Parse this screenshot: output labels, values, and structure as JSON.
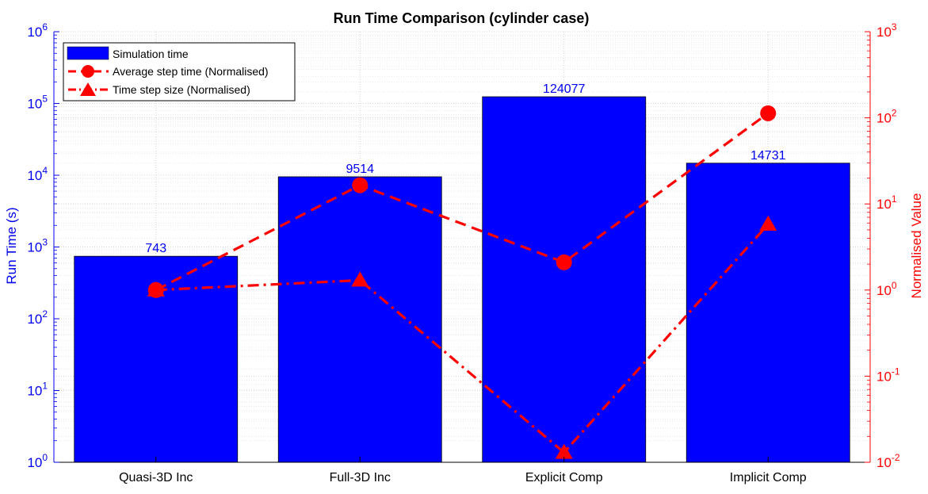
{
  "chart_data": {
    "type": "bar",
    "title": "Run Time Comparison (cylinder case)",
    "categories": [
      "Quasi-3D Inc",
      "Full-3D Inc",
      "Explicit Comp",
      "Implicit Comp"
    ],
    "y_left": {
      "label": "Run Time (s)",
      "scale": "log",
      "range": [
        1,
        1000000
      ],
      "tick_exponents": [
        0,
        1,
        2,
        3,
        4,
        5,
        6
      ],
      "color": "#0000ee"
    },
    "y_right": {
      "label": "Normalised Value",
      "scale": "log",
      "range": [
        0.01,
        1000
      ],
      "tick_exponents": [
        -2,
        -1,
        0,
        1,
        2,
        3
      ],
      "color": "#ff0000"
    },
    "grid": true,
    "legend_position": "top-left",
    "series": [
      {
        "name": "Simulation time",
        "type": "bar",
        "axis": "left",
        "color": "#0000ff",
        "values": [
          743,
          9514,
          124077,
          14731
        ],
        "data_labels": [
          "743",
          "9514",
          "124077",
          "14731"
        ]
      },
      {
        "name": "Average step time (Normalised)",
        "type": "line",
        "axis": "right",
        "color": "#ff0000",
        "marker": "circle",
        "line_style": "dashed",
        "values": [
          1.0,
          16.5,
          2.1,
          113
        ]
      },
      {
        "name": "Time step size (Normalised)",
        "type": "line",
        "axis": "right",
        "color": "#ff0000",
        "marker": "triangle",
        "line_style": "dash-dot",
        "values": [
          1.0,
          1.3,
          0.013,
          5.8
        ]
      }
    ]
  }
}
